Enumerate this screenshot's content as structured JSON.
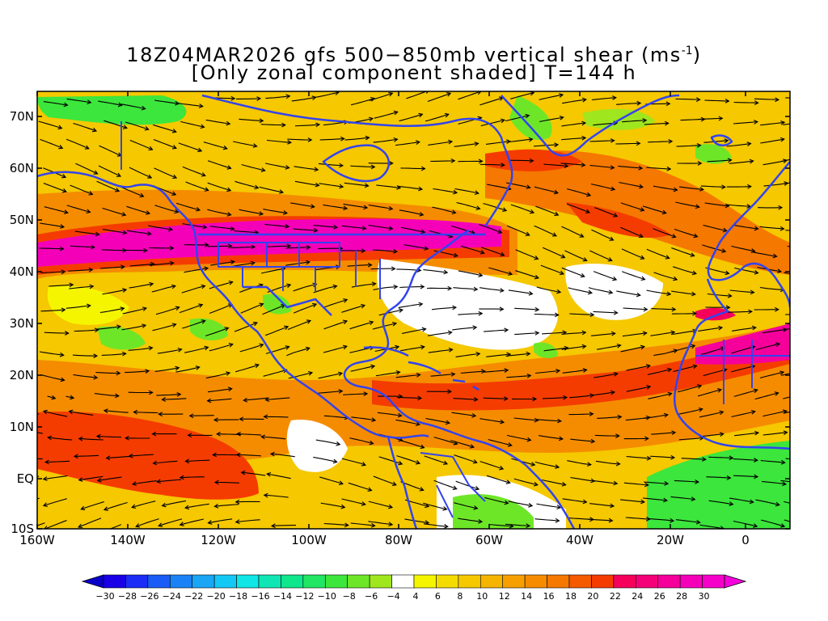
{
  "title": {
    "line1_prefix": "18Z04MAR2026 gfs 500−850mb vertical shear (ms",
    "line1_sup": "-1",
    "line1_suffix": ")",
    "line2": "[Only zonal component shaded] T=144 h"
  },
  "map": {
    "lat_labels": [
      "70N",
      "60N",
      "50N",
      "40N",
      "30N",
      "20N",
      "10N",
      "EQ",
      "10S"
    ],
    "lon_labels": [
      "160W",
      "140W",
      "120W",
      "100W",
      "80W",
      "60W",
      "40W",
      "20W",
      "0"
    ],
    "coastline_color": "#3344ee",
    "streamline_color": "#000000"
  },
  "colorbar": {
    "labels": [
      "-30",
      "-28",
      "-26",
      "-24",
      "-22",
      "-20",
      "-18",
      "-16",
      "-14",
      "-12",
      "-10",
      "-8",
      "-6",
      "-4",
      "4",
      "6",
      "8",
      "10",
      "12",
      "14",
      "16",
      "18",
      "20",
      "22",
      "24",
      "26",
      "28",
      "30"
    ],
    "colors": [
      "#1a00e6",
      "#1a2cf5",
      "#1a5cf5",
      "#1a82f5",
      "#19a6f5",
      "#14c8f5",
      "#10e6e6",
      "#10e6b4",
      "#10e68c",
      "#20e664",
      "#3ce63c",
      "#6ee628",
      "#a0e61e",
      "#ffffff",
      "#f5f500",
      "#f5dc00",
      "#f5c800",
      "#f5b400",
      "#f5a000",
      "#f58c00",
      "#f57800",
      "#f55a00",
      "#f53c00",
      "#f5005a",
      "#f50078",
      "#f5009b",
      "#f500b9",
      "#f500c8"
    ],
    "under_color": "#0a00c8",
    "over_color": "#f500dc"
  }
}
